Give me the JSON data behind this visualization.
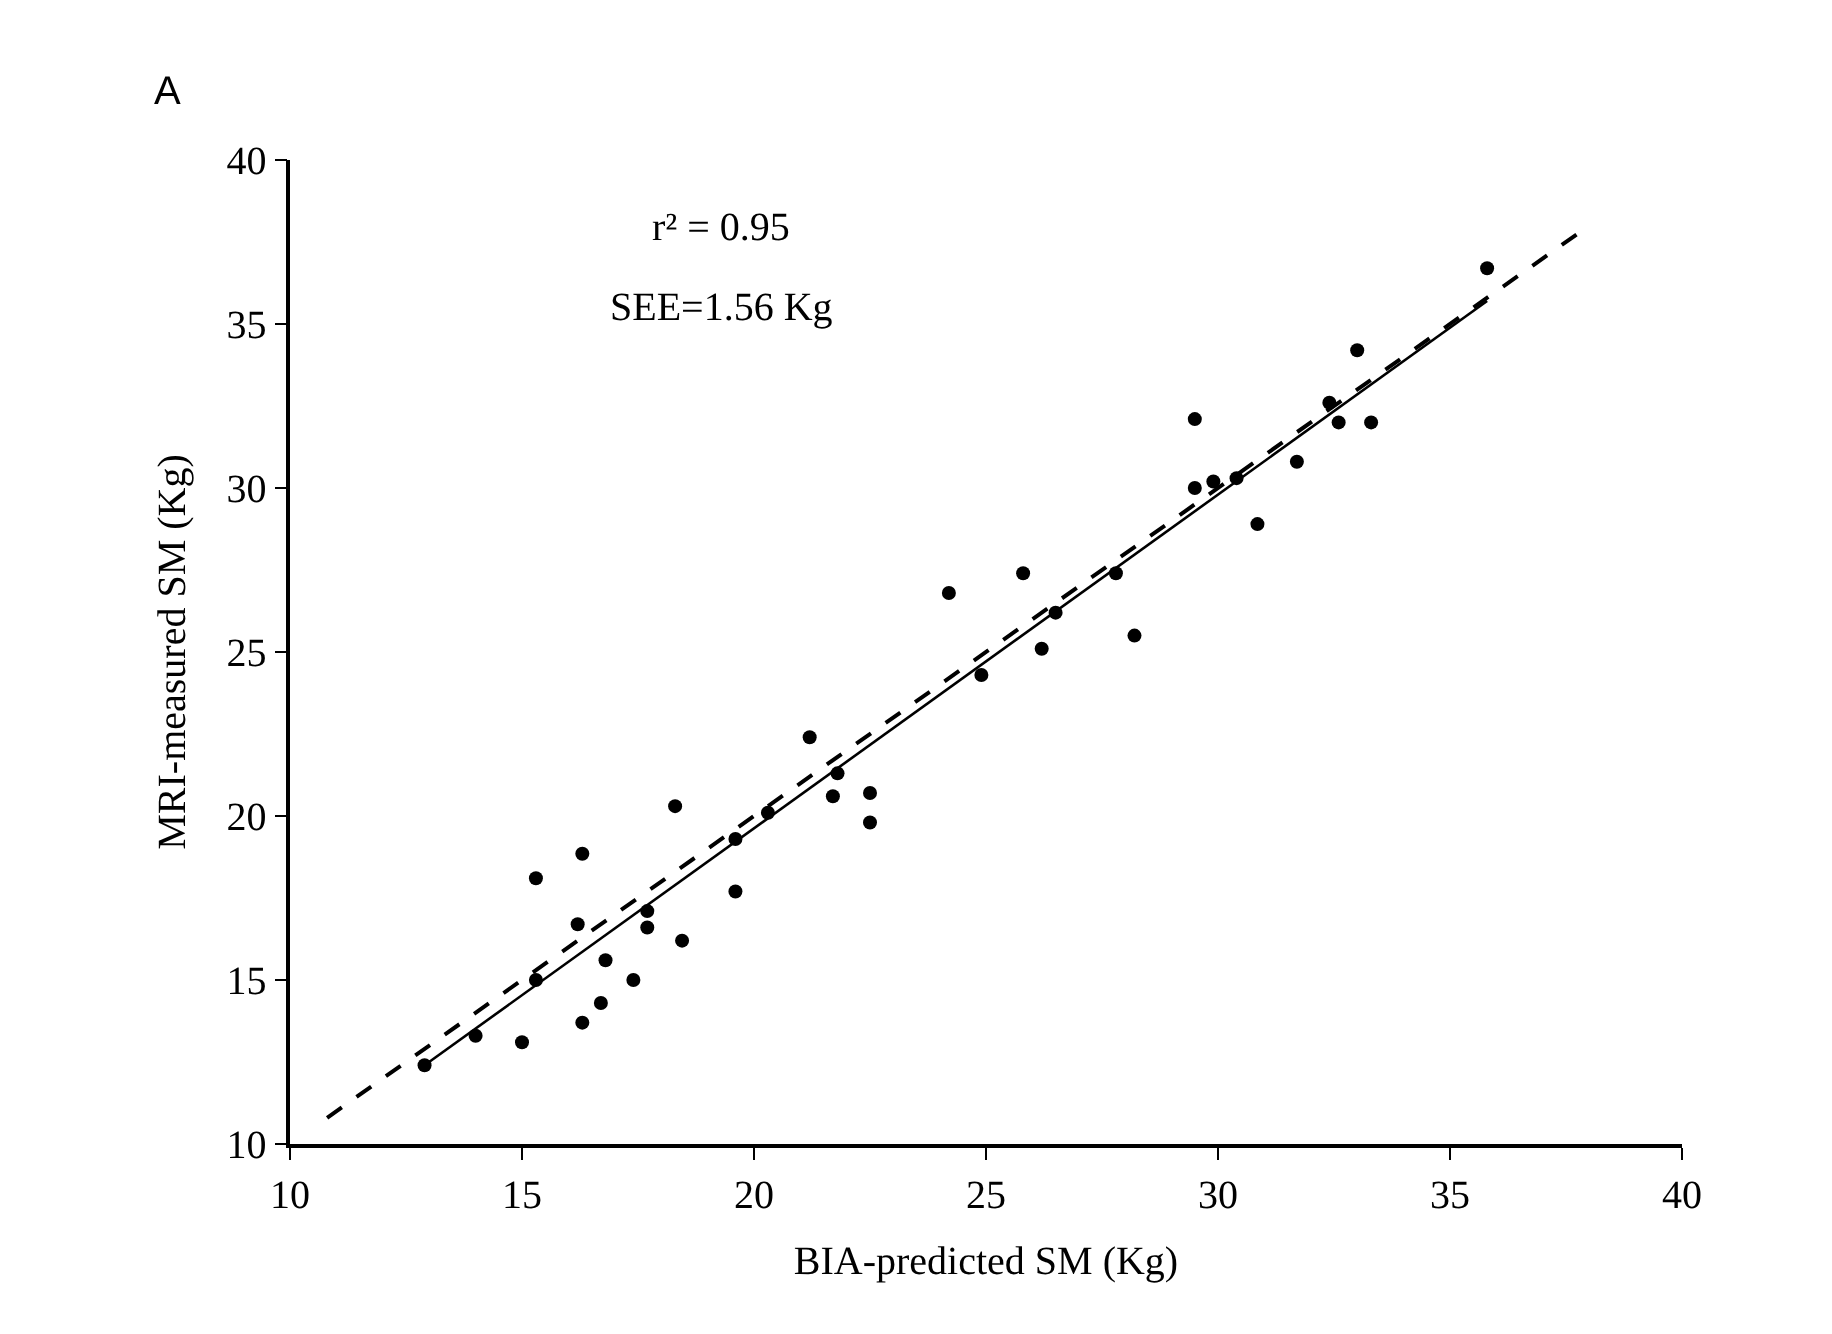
{
  "chart_data": {
    "type": "scatter",
    "xlabel": "BIA-predicted SM (Kg)",
    "ylabel": "MRI-measured SM (Kg)",
    "xlim": [
      10,
      40
    ],
    "ylim": [
      10,
      40
    ],
    "xticks": [
      10,
      15,
      20,
      25,
      30,
      35,
      40
    ],
    "yticks": [
      10,
      15,
      20,
      25,
      30,
      35,
      40
    ],
    "annotations": [
      "A",
      "r² = 0.95",
      "SEE=1.56 Kg"
    ],
    "series": [
      {
        "marker": "circle",
        "color": "#000000",
        "x": [
          12.9,
          14.0,
          15.0,
          15.3,
          15.3,
          16.3,
          16.2,
          16.3,
          16.8,
          16.7,
          17.4,
          17.7,
          17.7,
          18.3,
          18.45,
          19.6,
          19.6,
          20.3,
          21.2,
          21.7,
          21.8,
          22.5,
          22.5,
          24.2,
          24.9,
          25.8,
          26.2,
          26.5,
          27.8,
          28.2,
          29.5,
          29.5,
          29.9,
          30.4,
          30.85,
          31.7,
          32.4,
          32.6,
          33.0,
          33.3,
          35.8
        ],
        "values": [
          12.4,
          13.3,
          13.1,
          18.1,
          15.0,
          18.85,
          16.7,
          13.7,
          15.6,
          14.3,
          15.0,
          16.6,
          17.1,
          20.3,
          16.2,
          17.7,
          19.3,
          20.1,
          22.4,
          20.6,
          21.3,
          19.8,
          20.7,
          26.8,
          24.3,
          27.4,
          25.1,
          26.2,
          27.4,
          25.5,
          30.0,
          32.1,
          30.2,
          30.3,
          28.9,
          30.8,
          32.6,
          32.0,
          34.2,
          32.0,
          36.7
        ]
      },
      {
        "type": "line",
        "color": "#000000",
        "line_style": "solid",
        "marker": "none",
        "x": [
          12.9,
          35.8
        ],
        "values": [
          12.4,
          35.7
        ]
      },
      {
        "type": "line",
        "color": "#000000",
        "line_style": "dashed",
        "marker": "none",
        "x": [
          10.8,
          37.8
        ],
        "values": [
          10.8,
          37.8
        ]
      }
    ]
  }
}
